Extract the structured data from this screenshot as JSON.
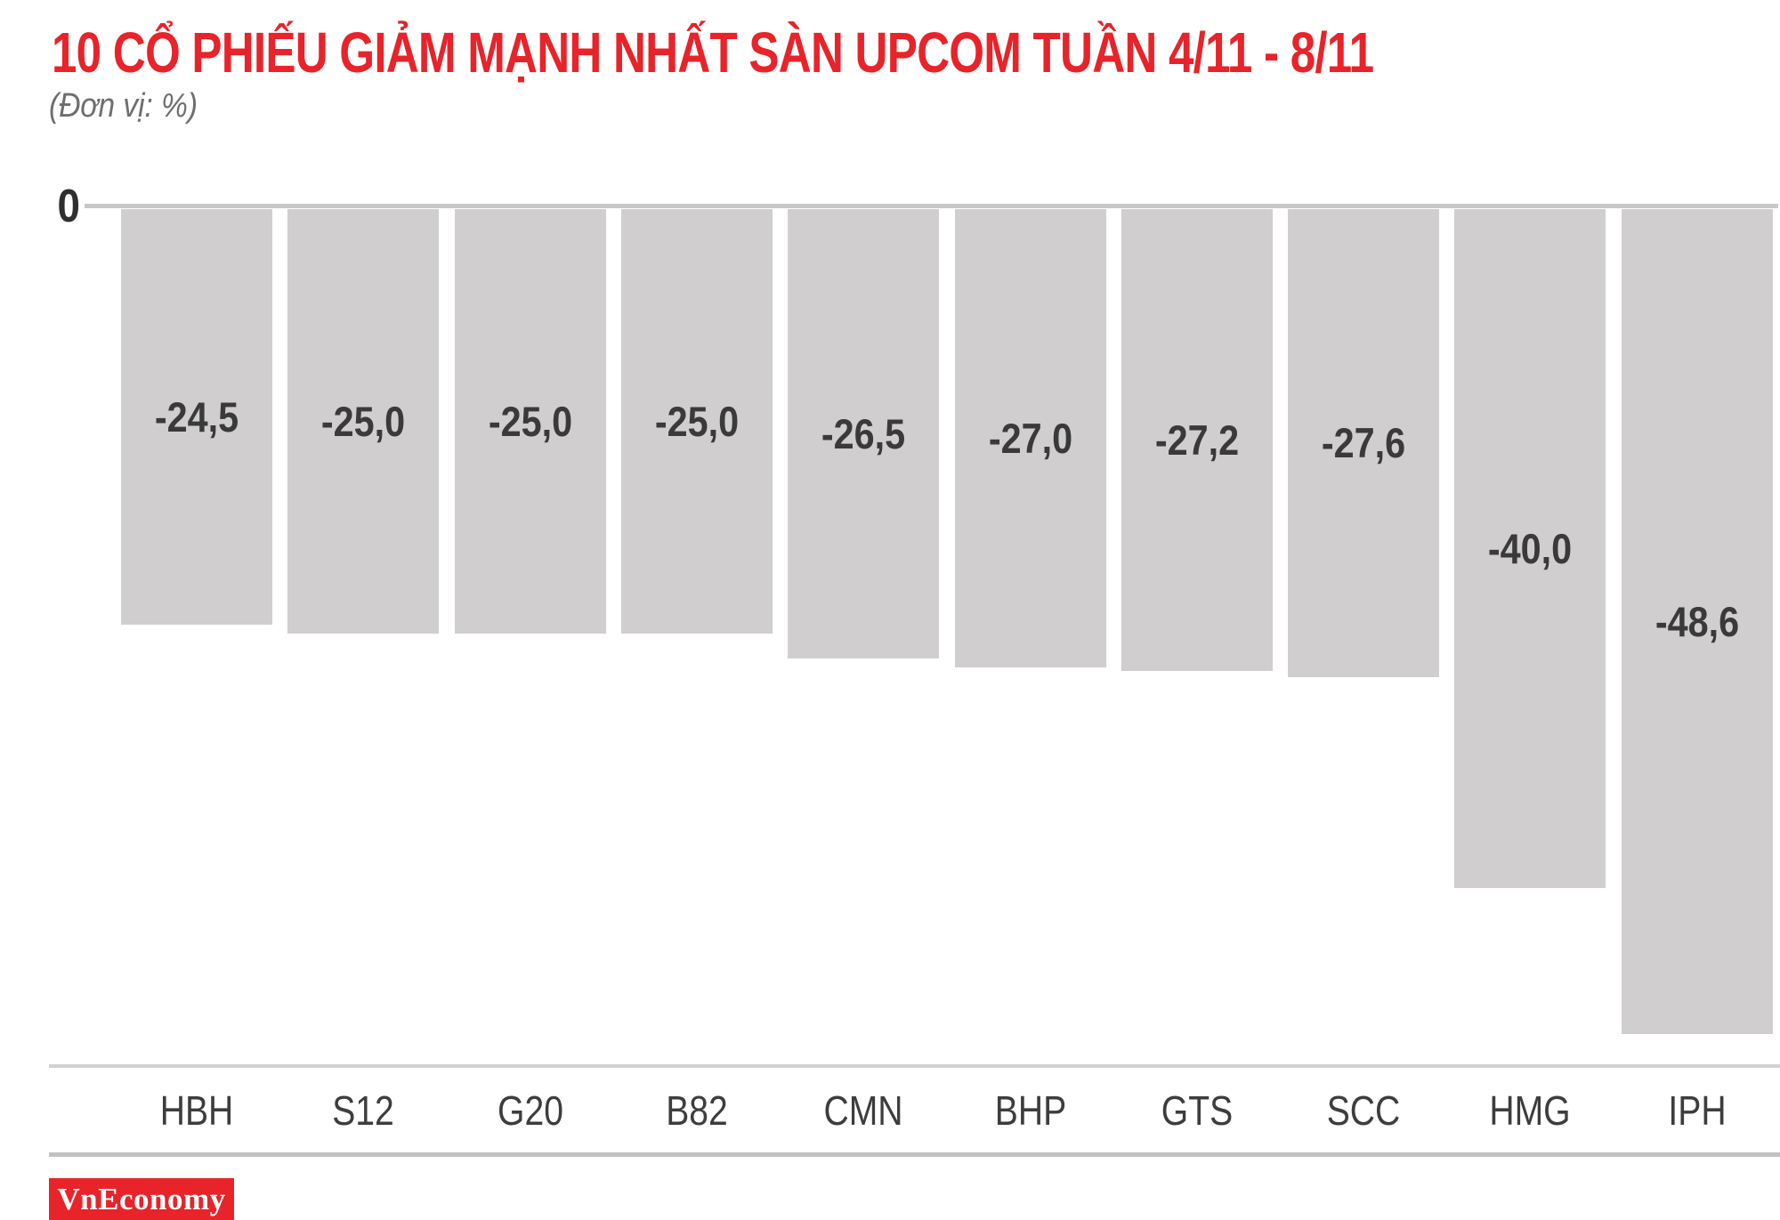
{
  "header": {
    "title": "10 CỔ PHIẾU GIẢM MẠNH NHẤT SÀN UPCOM TUẦN 4/11 - 8/11",
    "subtitle": "(Đơn vị: %)"
  },
  "chart_data": {
    "type": "bar",
    "orientation": "vertical",
    "direction": "negative-down",
    "title": "10 CỔ PHIẾU GIẢM MẠNH NHẤT SÀN UPCOM TUẦN 4/11 - 8/11",
    "unit_note": "(Đơn vị: %)",
    "categories": [
      "HBH",
      "S12",
      "G20",
      "B82",
      "CMN",
      "BHP",
      "GTS",
      "SCC",
      "HMG",
      "IPH"
    ],
    "values": [
      -24.5,
      -25.0,
      -25.0,
      -25.0,
      -26.5,
      -27.0,
      -27.2,
      -27.6,
      -40.0,
      -48.6
    ],
    "value_labels": [
      "-24,5",
      "-25,0",
      "-25,0",
      "-25,0",
      "-26,5",
      "-27,0",
      "-27,2",
      "-27,6",
      "-40,0",
      "-48,6"
    ],
    "xlabel": "",
    "ylabel": "%",
    "ylim": [
      -50,
      0
    ],
    "zero_tick_label": "0",
    "grid": false,
    "legend": false,
    "bar_color": "#d0cecf",
    "value_label_color": "#3a3a3a"
  },
  "footer": {
    "brand": "VnEconomy"
  },
  "colors": {
    "accent_red": "#e8232a",
    "bar_gray": "#d0cecf",
    "line_gray": "#c9c7c8",
    "text_dark": "#2f2f2f",
    "subtitle_gray": "#6d6e70"
  }
}
